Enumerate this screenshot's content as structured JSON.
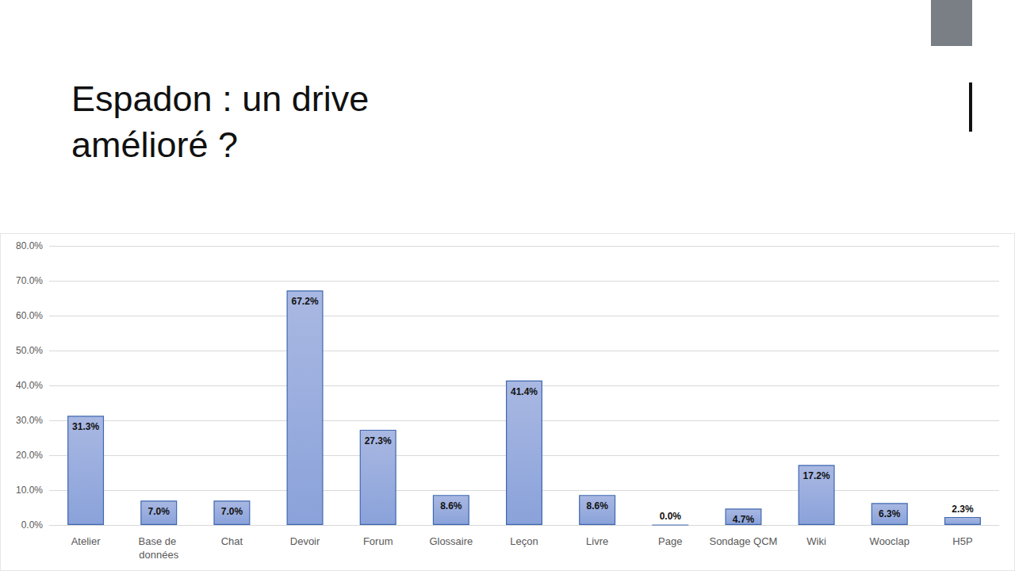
{
  "chart_data": {
    "type": "bar",
    "title": "Espadon : un drive amélioré ?",
    "categories": [
      "Atelier",
      "Base de données",
      "Chat",
      "Devoir",
      "Forum",
      "Glossaire",
      "Leçon",
      "Livre",
      "Page",
      "Sondage QCM",
      "Wiki",
      "Wooclap",
      "H5P"
    ],
    "values": [
      31.3,
      7.0,
      7.0,
      67.2,
      27.3,
      8.6,
      41.4,
      8.6,
      0.0,
      4.7,
      17.2,
      6.3,
      2.3
    ],
    "value_labels": [
      "31.3%",
      "7.0%",
      "7.0%",
      "67.2%",
      "27.3%",
      "8.6%",
      "41.4%",
      "8.6%",
      "0.0%",
      "4.7%",
      "17.2%",
      "6.3%",
      "2.3%"
    ],
    "color": "#a9b8e2",
    "ylim": [
      0,
      80
    ],
    "yticks": [
      {
        "value": 0,
        "label": "0.0%"
      },
      {
        "value": 10,
        "label": "10.0%"
      },
      {
        "value": 20,
        "label": "20.0%"
      },
      {
        "value": 30,
        "label": "30.0%"
      },
      {
        "value": 40,
        "label": "40.0%"
      },
      {
        "value": 50,
        "label": "50.0%"
      },
      {
        "value": 60,
        "label": "60.0%"
      },
      {
        "value": 70,
        "label": "70.0%"
      },
      {
        "value": 80,
        "label": "80.0%"
      }
    ],
    "grid": true,
    "data_labels": true
  }
}
